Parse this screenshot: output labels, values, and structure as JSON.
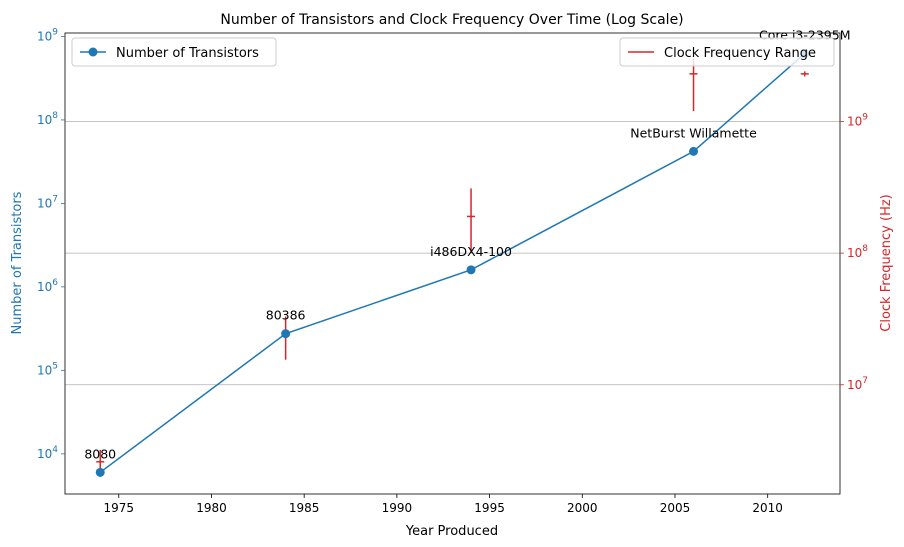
{
  "chart_data": {
    "type": "line",
    "title": "Number of Transistors and Clock Frequency Over Time (Log Scale)",
    "xlabel": "Year Produced",
    "ylabel_left": "Number of Transistors",
    "ylabel_right": "Clock Frequency (Hz)",
    "xlim": [
      1972.1,
      2013.9
    ],
    "ylim_left": [
      3300,
      1100000000
    ],
    "ylim_right": [
      1480000.0,
      4700000000.0
    ],
    "y_scale": "log",
    "grid": "horizontal, right axis",
    "legend_left_position": "upper-left",
    "legend_right_position": "upper-right",
    "colors": {
      "transistors": "#1f77b4",
      "clock": "#d62728",
      "grid": "#b0b0b0",
      "axis": "#000000"
    },
    "x_ticks": [
      1975,
      1980,
      1985,
      1990,
      1995,
      2000,
      2005,
      2010
    ],
    "x_tick_labels": [
      "1975",
      "1980",
      "1985",
      "1990",
      "1995",
      "2000",
      "2005",
      "2010"
    ],
    "y_left_ticks": [
      {
        "value": 10000,
        "base": "10",
        "exp": "4"
      },
      {
        "value": 100000,
        "base": "10",
        "exp": "5"
      },
      {
        "value": 1000000,
        "base": "10",
        "exp": "6"
      },
      {
        "value": 10000000,
        "base": "10",
        "exp": "7"
      },
      {
        "value": 100000000,
        "base": "10",
        "exp": "8"
      },
      {
        "value": 1000000000,
        "base": "10",
        "exp": "9"
      }
    ],
    "y_right_ticks": [
      {
        "value": 10000000,
        "base": "10",
        "exp": "7"
      },
      {
        "value": 100000000,
        "base": "10",
        "exp": "8"
      },
      {
        "value": 1000000000,
        "base": "10",
        "exp": "9"
      }
    ],
    "series": [
      {
        "name": "Number of Transistors",
        "axis": "left",
        "x": [
          1974,
          1984,
          1994,
          2006,
          2012
        ],
        "values": [
          6000,
          275000,
          1600000,
          42000000,
          624000000
        ],
        "labels": [
          "8080",
          "80386",
          "i486DX4-100",
          "NetBurst Willamette",
          "Core i3-2395M"
        ]
      },
      {
        "name": "Clock Frequency Range",
        "axis": "right",
        "type": "errorbar",
        "x": [
          1974,
          1984,
          1994,
          2006,
          2012
        ],
        "center": [
          2600000,
          25000000,
          190000000,
          2300000000,
          2300000000
        ],
        "low": [
          2000000,
          15500000,
          100000000,
          1200000000,
          2200000000
        ],
        "high": [
          3200000,
          33000000,
          310000000,
          3000000000,
          2400000000
        ]
      }
    ]
  }
}
